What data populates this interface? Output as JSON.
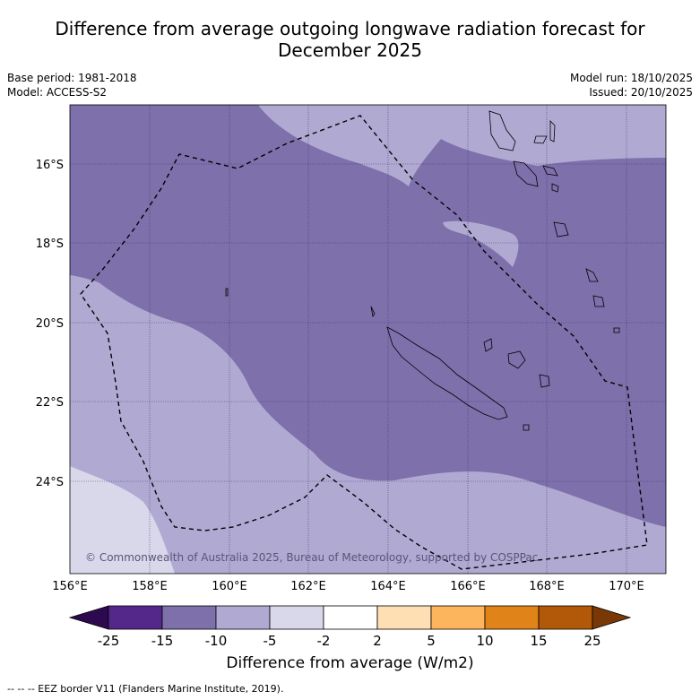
{
  "title_line1": "Difference from average outgoing longwave radiation forecast for",
  "title_line2": "December 2025",
  "meta_left": {
    "base_period": "Base period: 1981-2018",
    "model": "Model: ACCESS-S2"
  },
  "meta_right": {
    "model_run": "Model run: 18/10/2025",
    "issued": "Issued: 20/10/2025"
  },
  "lat_labels": [
    "16°S",
    "18°S",
    "20°S",
    "22°S",
    "24°S"
  ],
  "lon_labels": [
    "156°E",
    "158°E",
    "160°E",
    "162°E",
    "164°E",
    "166°E",
    "168°E",
    "170°E"
  ],
  "copyright": "© Commonwealth of Australia 2025, Bureau of Meteorology, supported by COSPPac",
  "colorbar": {
    "ticks": [
      "-25",
      "-15",
      "-10",
      "-5",
      "-2",
      "2",
      "5",
      "10",
      "15",
      "25"
    ],
    "colors": [
      "#2d0a4f",
      "#54288a",
      "#7e70ab",
      "#b0aad3",
      "#d9d8ea",
      "#ffffff",
      "#fddfb3",
      "#fcb45d",
      "#e08318",
      "#b15908",
      "#7a3806"
    ],
    "label": "Difference from average (W/m2)"
  },
  "footer": "-- -- -- EEZ border V11 (Flanders Marine Institute, 2019)."
}
